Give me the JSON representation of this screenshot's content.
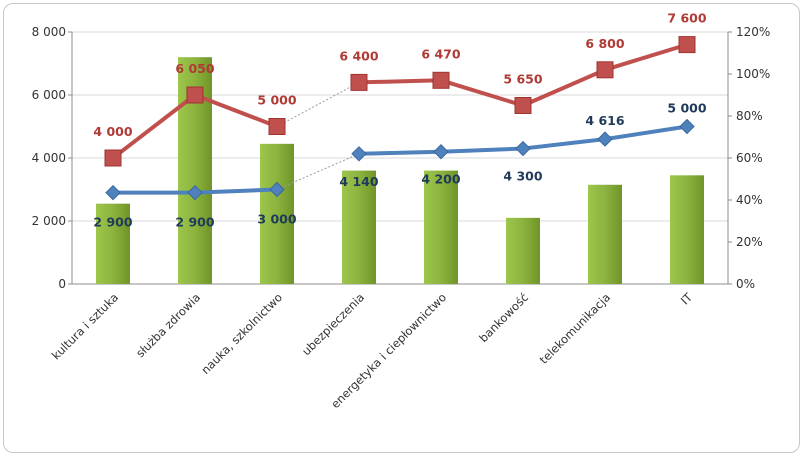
{
  "chart_data": {
    "type": "bar",
    "categories": [
      "kultura i sztuka",
      "służba zdrowia",
      "nauka, szkolnictwo",
      "ubezpieczenia",
      "energetyka i ciepłownictwo",
      "bankowość",
      "telekomunikacja",
      "IT"
    ],
    "y_left": {
      "ylim": [
        0,
        8000
      ],
      "ticks": [
        "0",
        "2 000",
        "4 000",
        "6 000",
        "8 000"
      ],
      "tick_values": [
        0,
        2000,
        4000,
        6000,
        8000
      ]
    },
    "y_right": {
      "ylim": [
        0,
        120
      ],
      "ticks": [
        "0%",
        "20%",
        "40%",
        "60%",
        "80%",
        "100%",
        "120%"
      ],
      "tick_values": [
        0,
        20,
        40,
        60,
        80,
        100,
        120
      ]
    },
    "series": [
      {
        "type": "bar",
        "axis": "left",
        "color": "#8cb33e",
        "values": [
          2550,
          7200,
          4450,
          3600,
          3600,
          2100,
          3150,
          3450
        ]
      },
      {
        "type": "line",
        "axis": "right",
        "color": "#c0504d",
        "values": [
          60,
          90,
          75,
          96,
          97,
          85,
          102,
          114
        ],
        "labels": [
          "4 000",
          "6 050",
          "5 000",
          "6 400",
          "6 470",
          "5 650",
          "6 800",
          "7 600"
        ]
      },
      {
        "type": "line",
        "axis": "right",
        "color": "#4f81bd",
        "values": [
          43.5,
          43.5,
          45,
          62,
          63,
          64.5,
          69,
          75
        ],
        "labels": [
          "2 900",
          "2 900",
          "3 000",
          "4 140",
          "4 200",
          "4 300",
          "4 616",
          "5 000"
        ]
      }
    ],
    "grid": true,
    "legend": "none",
    "title": ""
  }
}
